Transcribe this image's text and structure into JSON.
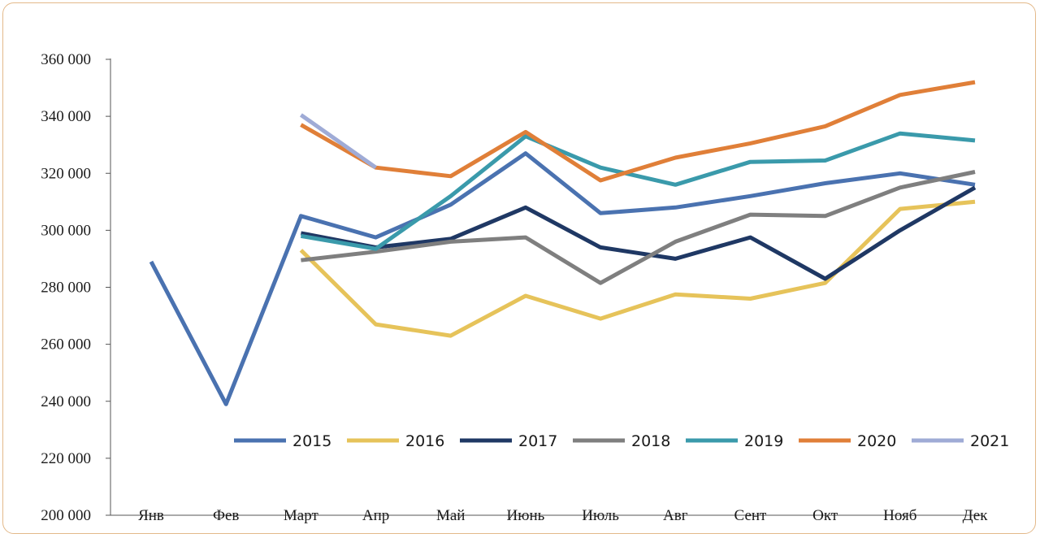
{
  "chart_data": {
    "type": "line",
    "title": "",
    "xlabel": "",
    "ylabel": "",
    "ylim": [
      200000,
      360000
    ],
    "y_ticks": [
      {
        "value": 200000,
        "label": "200 000"
      },
      {
        "value": 220000,
        "label": "220 000"
      },
      {
        "value": 240000,
        "label": "240 000"
      },
      {
        "value": 260000,
        "label": "260 000"
      },
      {
        "value": 280000,
        "label": "280 000"
      },
      {
        "value": 300000,
        "label": "300 000"
      },
      {
        "value": 320000,
        "label": "320 000"
      },
      {
        "value": 340000,
        "label": "340 000"
      },
      {
        "value": 360000,
        "label": "360 000"
      }
    ],
    "categories": [
      "Янв",
      "Фев",
      "Март",
      "Апр",
      "Май",
      "Июнь",
      "Июль",
      "Авг",
      "Сент",
      "Окт",
      "Нояб",
      "Дек"
    ],
    "grid": false,
    "legend_position": "bottom-right",
    "series": [
      {
        "name": "2015",
        "color": "#4a72b0",
        "values": [
          289000,
          239000,
          305000,
          297500,
          309000,
          327000,
          306000,
          308000,
          312000,
          316500,
          320000,
          316000
        ]
      },
      {
        "name": "2016",
        "color": "#e6c35a",
        "values": [
          null,
          null,
          293000,
          267000,
          263000,
          277000,
          269000,
          277500,
          276000,
          281500,
          307500,
          310000
        ]
      },
      {
        "name": "2017",
        "color": "#1f3864",
        "values": [
          null,
          null,
          299000,
          294000,
          297000,
          308000,
          294000,
          290000,
          297500,
          283000,
          300000,
          315000
        ]
      },
      {
        "name": "2018",
        "color": "#7f7f7f",
        "values": [
          null,
          null,
          289500,
          292500,
          296000,
          297500,
          281500,
          296000,
          305500,
          305000,
          315000,
          320500
        ]
      },
      {
        "name": "2019",
        "color": "#3a9aab",
        "values": [
          null,
          null,
          298000,
          293500,
          312000,
          333000,
          322000,
          316000,
          324000,
          324500,
          334000,
          331500
        ]
      },
      {
        "name": "2020",
        "color": "#e07f38",
        "values": [
          null,
          null,
          337000,
          322000,
          319000,
          334500,
          317500,
          325500,
          330500,
          336500,
          347500,
          352000
        ]
      },
      {
        "name": "2021",
        "color": "#9fabd6",
        "values": [
          null,
          null,
          340500,
          322000,
          null,
          null,
          null,
          null,
          null,
          null,
          null,
          null
        ]
      }
    ]
  }
}
